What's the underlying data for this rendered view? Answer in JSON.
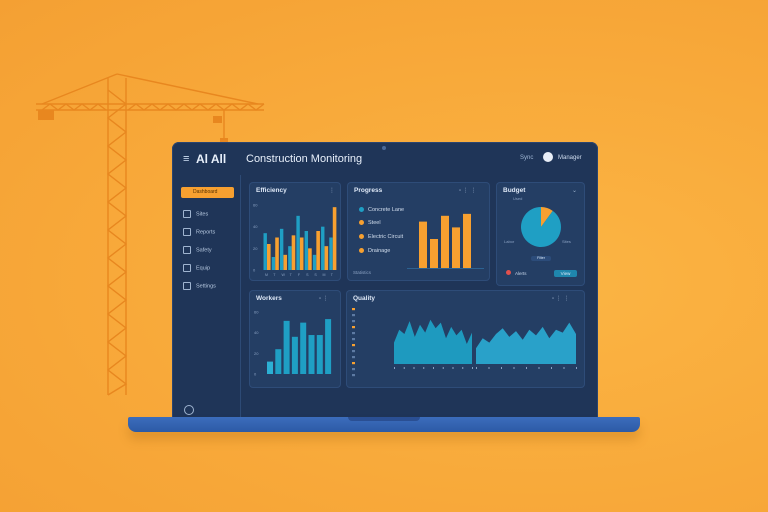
{
  "colors": {
    "accent": "#f7a030",
    "teal": "#1f9fc4",
    "panel": "#243e64",
    "background": "#f8a93a"
  },
  "header": {
    "menu_icon": "hamburger-icon",
    "app_name": "Al All",
    "page_title": "Construction Monitoring",
    "user_label": "Sync",
    "user_name": "Manager"
  },
  "sidebar": {
    "items": [
      {
        "label": "Dashboard",
        "icon": "dashboard-icon"
      },
      {
        "label": "Sites",
        "icon": "grid-icon"
      },
      {
        "label": "Reports",
        "icon": "report-icon"
      },
      {
        "label": "Safety",
        "icon": "shield-icon"
      },
      {
        "label": "Equip",
        "icon": "equipment-icon"
      },
      {
        "label": "Settings",
        "icon": "settings-icon"
      }
    ]
  },
  "cards": {
    "activity": {
      "title": "Efficiency"
    },
    "progress": {
      "title": "Progress",
      "legend": [
        "Concrete Lane",
        "Steel",
        "Electric Circuit",
        "Drainage"
      ],
      "footer": "Statistics"
    },
    "budget": {
      "title": "Budget",
      "label_top": "Used",
      "label_left": "Labor",
      "label_right": "Sites",
      "filter": "Filter",
      "button": "View",
      "alert": "Alerts"
    },
    "workers": {
      "title": "Workers"
    },
    "quality": {
      "title": "Quality"
    }
  },
  "chart_data": [
    {
      "type": "bar",
      "title": "Efficiency",
      "categories": [
        "M",
        "T",
        "W",
        "T",
        "F",
        "S",
        "S",
        "M",
        "T"
      ],
      "series": [
        {
          "values": [
            24,
            30,
            14,
            32,
            30,
            20,
            36,
            22,
            58
          ]
        },
        {
          "values": [
            34,
            12,
            38,
            22,
            50,
            36,
            14,
            40,
            30
          ]
        }
      ],
      "ylim": [
        0,
        60
      ],
      "yticks": [
        "60",
        "40",
        "20",
        "0"
      ]
    },
    {
      "type": "bar",
      "title": "Progress",
      "values": [
        48,
        30,
        54,
        42,
        56
      ],
      "ylim": [
        0,
        60
      ]
    },
    {
      "type": "pie",
      "title": "Budget",
      "slices": [
        {
          "value": 10,
          "color": "#f7a030"
        },
        {
          "value": 90,
          "color": "#1f9fc4"
        }
      ]
    },
    {
      "type": "bar",
      "title": "Workers",
      "values": [
        14,
        28,
        60,
        42,
        58,
        44,
        44,
        62
      ],
      "ylim": [
        0,
        70
      ],
      "yticks": [
        "60",
        "40",
        "20",
        "0"
      ]
    },
    {
      "type": "area",
      "title": "Quality",
      "series": [
        {
          "values": [
            30,
            48,
            42,
            60,
            38,
            55,
            44,
            62,
            50,
            58,
            36,
            52,
            40,
            48,
            28,
            44
          ]
        },
        {
          "values": [
            22,
            36,
            30,
            42,
            50,
            38,
            46,
            34,
            48,
            40,
            52,
            36,
            48,
            44,
            58,
            42
          ]
        }
      ],
      "ylim": [
        0,
        70
      ]
    }
  ]
}
